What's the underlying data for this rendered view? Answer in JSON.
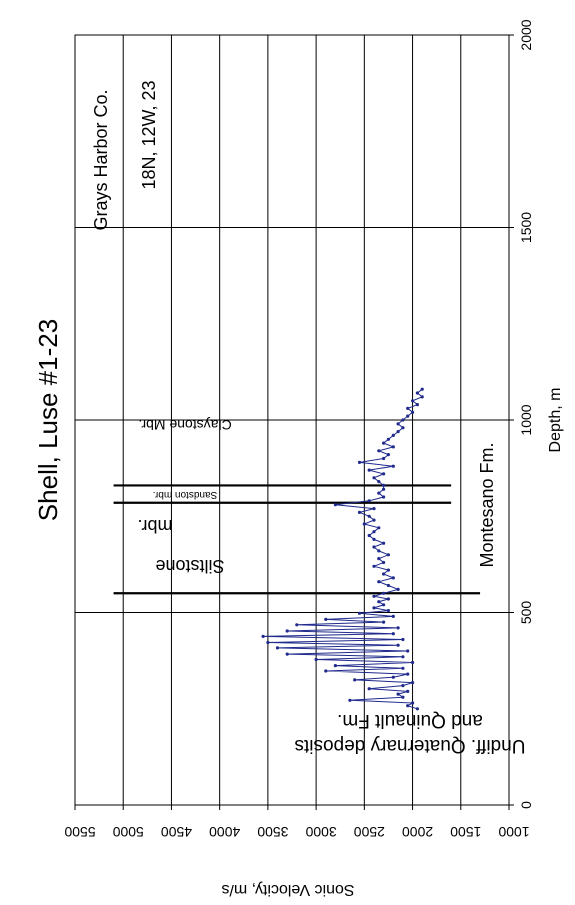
{
  "chart_data": {
    "type": "line",
    "title": "Shell, Luse #1-23",
    "xlabel": "Depth, m",
    "ylabel": "Sonic Velocity, m/s",
    "xlim": [
      0,
      2000
    ],
    "ylim": [
      1000,
      5500
    ],
    "x_ticks": [
      "0",
      "500",
      "1000",
      "1500",
      "2000"
    ],
    "y_ticks": [
      "1000",
      "1500",
      "2000",
      "2500",
      "3000",
      "3500",
      "4000",
      "4500",
      "5000",
      "5500"
    ],
    "grid": true,
    "series": [
      {
        "color": "#1f2a8c",
        "x": [
          250,
          258,
          265,
          272,
          280,
          288,
          295,
          302,
          310,
          318,
          325,
          332,
          340,
          348,
          355,
          362,
          370,
          378,
          385,
          392,
          400,
          408,
          415,
          422,
          430,
          438,
          445,
          452,
          460,
          468,
          475,
          482,
          490,
          498,
          505,
          512,
          520,
          528,
          535,
          542,
          550,
          560,
          570,
          580,
          590,
          600,
          610,
          620,
          630,
          640,
          650,
          660,
          670,
          680,
          690,
          700,
          710,
          720,
          730,
          740,
          750,
          760,
          770,
          780,
          790,
          800,
          810,
          820,
          830,
          840,
          850,
          860,
          870,
          880,
          890,
          900,
          910,
          920,
          930,
          940,
          950,
          960,
          970,
          980,
          990,
          1000,
          1010,
          1020,
          1030,
          1040,
          1050,
          1060,
          1070,
          1080
        ],
        "values": [
          1950,
          2050,
          2000,
          2650,
          2100,
          2150,
          2050,
          2450,
          2100,
          2000,
          2600,
          2200,
          2050,
          2900,
          2100,
          2800,
          2000,
          3000,
          2100,
          3300,
          2050,
          3400,
          2150,
          3500,
          2100,
          3550,
          2200,
          3300,
          2150,
          3200,
          2300,
          2900,
          2200,
          2550,
          2250,
          2400,
          2300,
          2350,
          2250,
          2400,
          2300,
          2150,
          2250,
          2350,
          2200,
          2300,
          2250,
          2400,
          2300,
          2350,
          2250,
          2350,
          2400,
          2300,
          2400,
          2450,
          2400,
          2350,
          2500,
          2400,
          2450,
          2550,
          2400,
          2800,
          2450,
          2300,
          2350,
          2300,
          2300,
          2350,
          2400,
          2300,
          2450,
          2200,
          2550,
          2300,
          2250,
          2350,
          2200,
          2300,
          2250,
          2200,
          2150,
          2100,
          2150,
          2100,
          2050,
          2000,
          2050,
          1950,
          2000,
          1900,
          1950,
          1900
        ]
      }
    ],
    "vlines": [
      {
        "x": 550,
        "y_from": 1300,
        "y_to": 5100
      },
      {
        "x": 785,
        "y_from": 1600,
        "y_to": 5100
      },
      {
        "x": 830,
        "y_from": 1600,
        "y_to": 5100
      }
    ],
    "annotations": {
      "location_county": "Grays Harbor Co.",
      "location_grid": "18N, 12W, 23",
      "unit_quaternary_line1": "Undiff. Quaternary deposits",
      "unit_quaternary_line2": "and Quinault Fm.",
      "unit_siltstone_line1": "Siltstone",
      "unit_siltstone_line2": "mbr.",
      "unit_sandstone": "Sandston mbr.",
      "unit_claystone": "Claystone Mbr.",
      "unit_montesano": "Montesano Fm."
    }
  }
}
